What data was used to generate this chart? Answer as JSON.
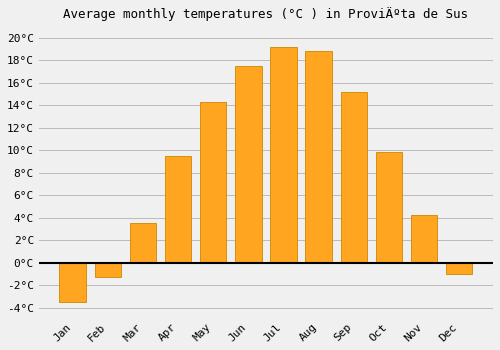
{
  "title": "Average monthly temperatures (°C ) in ProviÄºta de Sus",
  "months": [
    "Jan",
    "Feb",
    "Mar",
    "Apr",
    "May",
    "Jun",
    "Jul",
    "Aug",
    "Sep",
    "Oct",
    "Nov",
    "Dec"
  ],
  "values": [
    -3.5,
    -1.3,
    3.5,
    9.5,
    14.3,
    17.5,
    19.2,
    18.8,
    15.2,
    9.8,
    4.2,
    -1.0
  ],
  "bar_color": "#FFA520",
  "bar_edge_color": "#CC8800",
  "background_color": "#F0F0F0",
  "grid_color": "#BBBBBB",
  "zero_line_color": "#000000",
  "ylim": [
    -4.8,
    21.0
  ],
  "yticks": [
    -4,
    -2,
    0,
    2,
    4,
    6,
    8,
    10,
    12,
    14,
    16,
    18,
    20
  ],
  "title_fontsize": 9,
  "tick_fontsize": 8,
  "bar_width": 0.75,
  "xlabel_rotation": 45
}
